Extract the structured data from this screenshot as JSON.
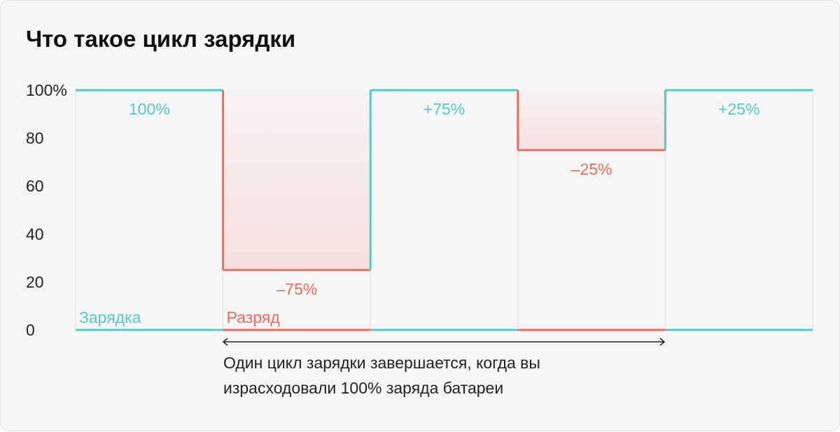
{
  "title": "Что такое цикл зарядки",
  "chart_data": {
    "type": "step",
    "title": "Что такое цикл зарядки",
    "ylim": [
      0,
      100
    ],
    "yticks": [
      "0",
      "20",
      "40",
      "60",
      "80",
      "100%"
    ],
    "segments": [
      {
        "phase": "charge",
        "value": 100,
        "label": "100%"
      },
      {
        "phase": "discharge",
        "value": 25,
        "label": "–75%"
      },
      {
        "phase": "charge",
        "value": 100,
        "label": "+75%"
      },
      {
        "phase": "discharge",
        "value": 75,
        "label": "–25%"
      },
      {
        "phase": "charge",
        "value": 100,
        "label": "+25%"
      }
    ],
    "legend": {
      "charge": "Зарядка",
      "discharge": "Разряд"
    },
    "colors": {
      "charge": "#4ecdc4",
      "discharge": "#ef6b5b",
      "grid": "#dddddd"
    },
    "annotation": {
      "lines": [
        "Один цикл зарядки завершается, когда вы",
        "израсходовали 100% заряда батареи"
      ]
    }
  }
}
